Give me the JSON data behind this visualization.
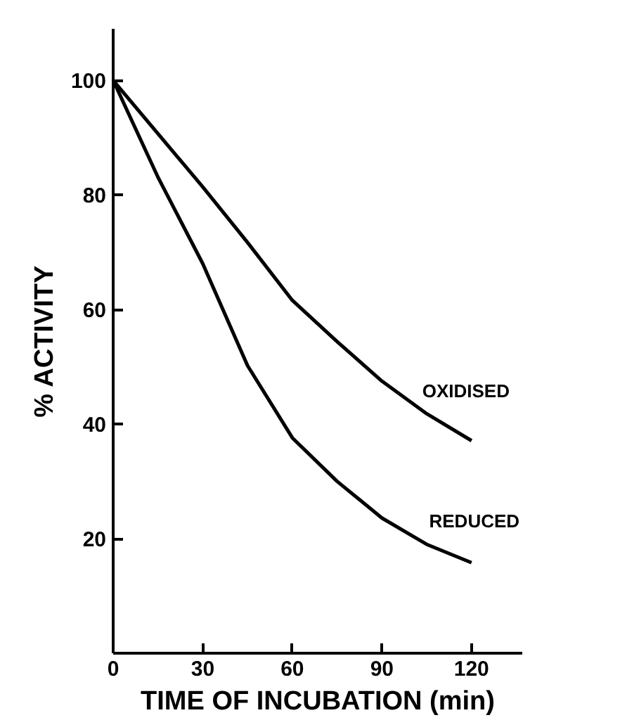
{
  "chart_data": {
    "type": "line",
    "xlabel": "TIME OF INCUBATION (min)",
    "ylabel": "% ACTIVITY",
    "x": [
      0,
      15,
      30,
      45,
      60,
      75,
      90,
      105,
      120
    ],
    "series": [
      {
        "name": "OXIDISED",
        "color": "#000000",
        "values": [
          100,
          90.7,
          81.4,
          71.7,
          61.6,
          54.4,
          47.5,
          41.8,
          37.1
        ]
      },
      {
        "name": "REDUCED",
        "color": "#000000",
        "values": [
          100,
          83.1,
          68,
          50.2,
          37.6,
          30,
          23.6,
          19,
          15.8
        ]
      }
    ],
    "xlim": [
      0,
      137
    ],
    "ylim": [
      0,
      109
    ],
    "xticks": [
      0,
      30,
      60,
      90,
      120
    ],
    "yticks": [
      20,
      40,
      60,
      80,
      100
    ],
    "grid": false,
    "marker": "none",
    "line_style": "solid"
  }
}
